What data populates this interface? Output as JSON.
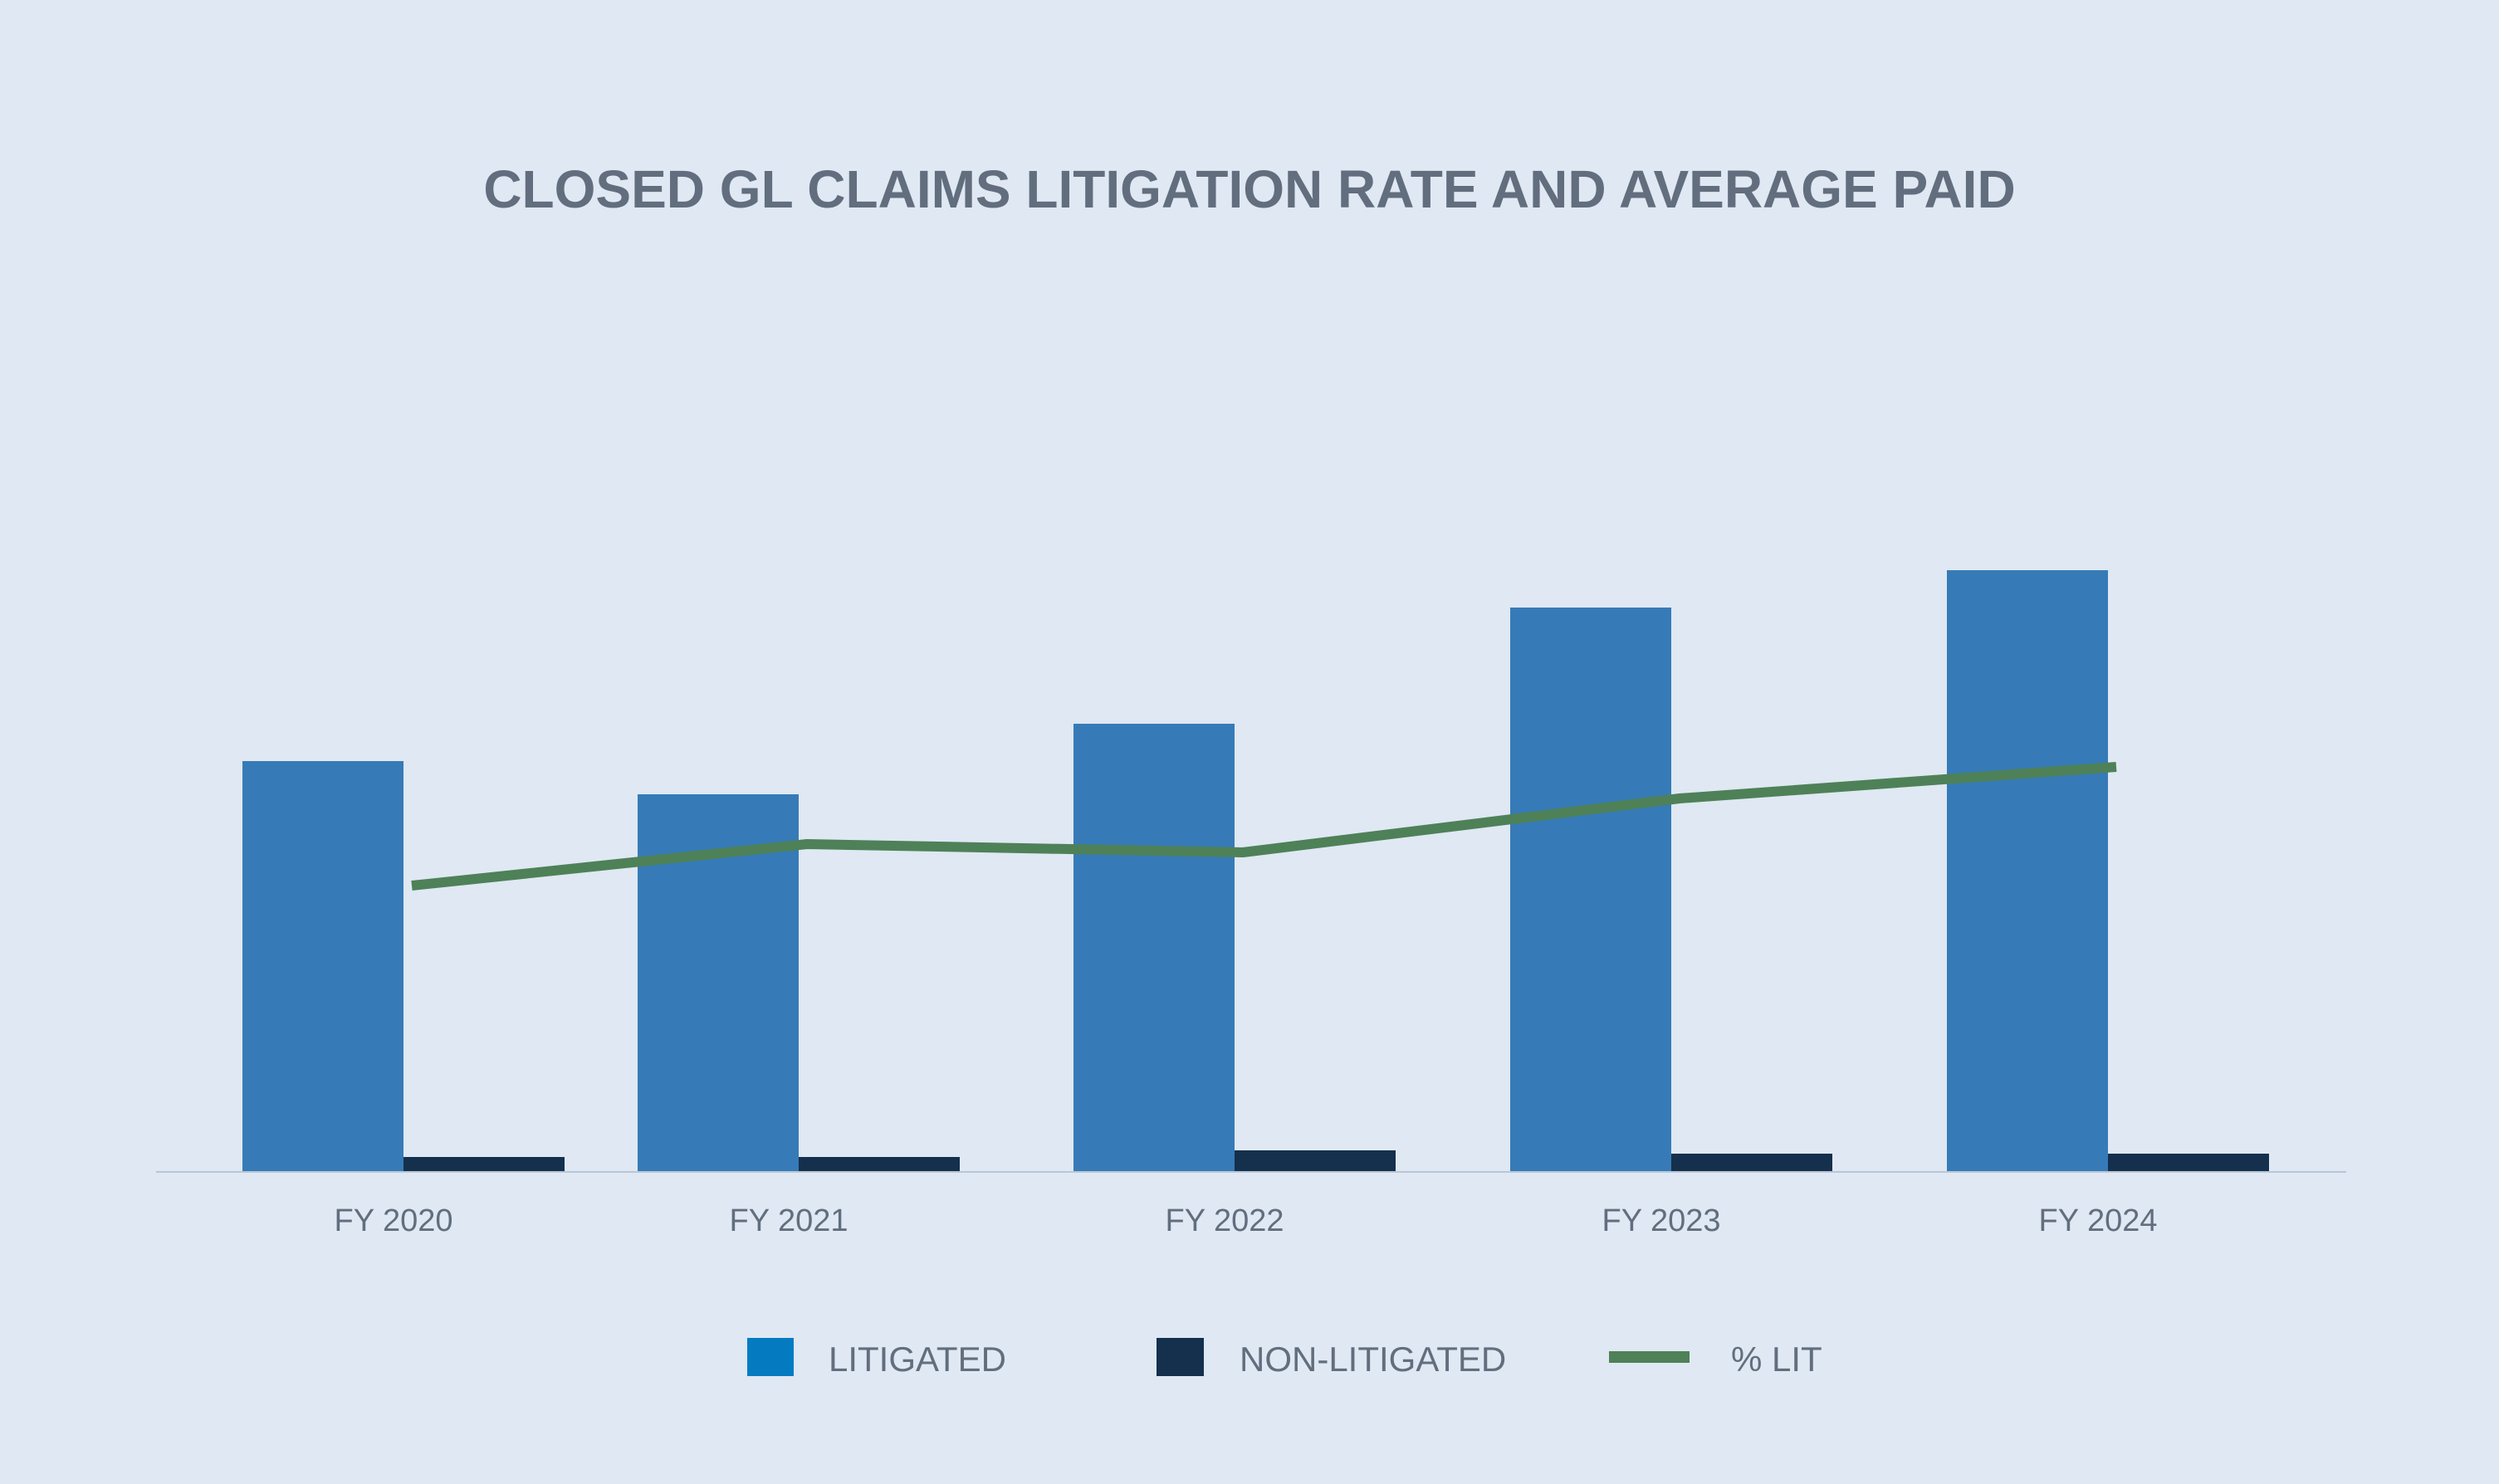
{
  "chart_data": {
    "type": "bar",
    "title": "CLOSED GL CLAIMS LITIGATION RATE AND AVERAGE PAID",
    "categories": [
      "FY 2020",
      "FY 2021",
      "FY 2022",
      "FY 2023",
      "FY 2024"
    ],
    "series": [
      {
        "name": "LITIGATED",
        "kind": "bar",
        "color": "#367bb7",
        "values": [
          49.5,
          45.5,
          54,
          68,
          72.5
        ]
      },
      {
        "name": "NON-LITIGATED",
        "kind": "bar",
        "color": "#14304d",
        "values": [
          1.8,
          1.8,
          2.6,
          2.2,
          2.2
        ]
      },
      {
        "name": "% LIT",
        "kind": "line",
        "color": "#4e8158",
        "values": [
          34.5,
          39.5,
          38.5,
          45,
          48.8
        ]
      }
    ],
    "ylim": [
      0,
      100
    ],
    "grid": false,
    "legend_position": "bottom",
    "legend": [
      {
        "label": "LITIGATED",
        "symbol": "square",
        "color": "#047bc1"
      },
      {
        "label": "NON-LITIGATED",
        "symbol": "square",
        "color": "#14304d"
      },
      {
        "label": "% LIT",
        "symbol": "line",
        "color": "#4e8158"
      }
    ]
  }
}
